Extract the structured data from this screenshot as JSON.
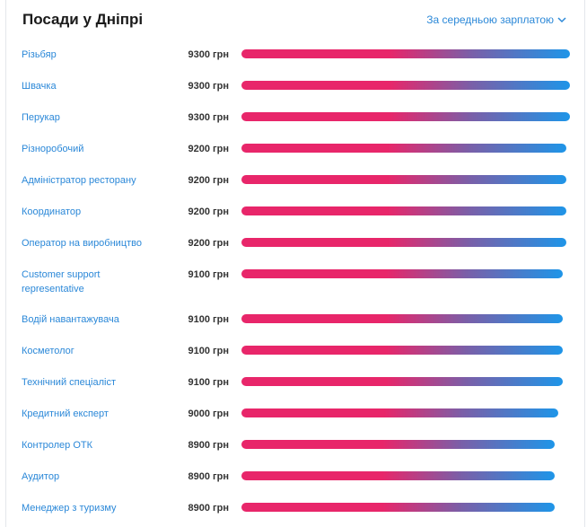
{
  "header": {
    "title": "Посади у Дніпрі",
    "sort_label": "За середньою зарплатою"
  },
  "max_salary": 9300,
  "jobs": [
    {
      "title": "Різьбяр",
      "salary": "9300 грн",
      "value": 9300
    },
    {
      "title": "Швачка",
      "salary": "9300 грн",
      "value": 9300
    },
    {
      "title": "Перукар",
      "salary": "9300 грн",
      "value": 9300
    },
    {
      "title": "Різноробочий",
      "salary": "9200 грн",
      "value": 9200
    },
    {
      "title": "Адміністратор ресторану",
      "salary": "9200 грн",
      "value": 9200
    },
    {
      "title": "Координатор",
      "salary": "9200 грн",
      "value": 9200
    },
    {
      "title": "Оператор на виробництво",
      "salary": "9200 грн",
      "value": 9200
    },
    {
      "title": "Customer support representative",
      "salary": "9100 грн",
      "value": 9100
    },
    {
      "title": "Водій навантажувача",
      "salary": "9100 грн",
      "value": 9100
    },
    {
      "title": "Косметолог",
      "salary": "9100 грн",
      "value": 9100
    },
    {
      "title": "Технічний спеціаліст",
      "salary": "9100 грн",
      "value": 9100
    },
    {
      "title": "Кредитний експерт",
      "salary": "9000 грн",
      "value": 9000
    },
    {
      "title": "Контролер ОТК",
      "salary": "8900 грн",
      "value": 8900
    },
    {
      "title": "Аудитор",
      "salary": "8900 грн",
      "value": 8900
    },
    {
      "title": "Менеджер з туризму",
      "salary": "8900 грн",
      "value": 8900
    }
  ],
  "colors": {
    "link": "#2b88d8",
    "bar_start": "#e8266a",
    "bar_end": "#1e95e8"
  }
}
